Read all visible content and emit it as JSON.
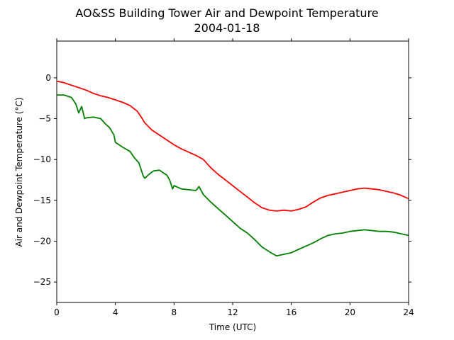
{
  "chart_data": {
    "type": "line",
    "title": "AO&SS Building Tower Air and Dewpoint Temperature",
    "subtitle": "2004-01-18",
    "xlabel": "Time (UTC)",
    "ylabel": "Air and Dewpoint Temperature (°C)",
    "xlim": [
      0,
      24
    ],
    "ylim": [
      -27.5,
      4.5
    ],
    "xticks": [
      0,
      4,
      8,
      12,
      16,
      20,
      24
    ],
    "yticks": [
      0,
      -5,
      -10,
      -15,
      -20,
      -25
    ],
    "grid": false,
    "series": [
      {
        "color": "#ff0000",
        "x": [
          0,
          0.5,
          1,
          1.5,
          2,
          2.5,
          3,
          3.5,
          4,
          4.5,
          5,
          5.5,
          5.8,
          6,
          6.5,
          7,
          7.5,
          8,
          8.5,
          9,
          9.5,
          10,
          10.5,
          11,
          11.5,
          12,
          12.5,
          13,
          13.5,
          14,
          14.5,
          15,
          15.5,
          16,
          16.5,
          17,
          17.5,
          18,
          18.5,
          19,
          19.5,
          20,
          20.5,
          21,
          21.5,
          22,
          22.5,
          23,
          23.5,
          24
        ],
        "y": [
          -0.4,
          -0.6,
          -0.9,
          -1.2,
          -1.5,
          -1.9,
          -2.2,
          -2.4,
          -2.7,
          -3.0,
          -3.4,
          -4.1,
          -4.9,
          -5.5,
          -6.4,
          -7.0,
          -7.6,
          -8.2,
          -8.7,
          -9.1,
          -9.5,
          -10.0,
          -11.0,
          -11.8,
          -12.5,
          -13.2,
          -13.9,
          -14.6,
          -15.3,
          -15.9,
          -16.2,
          -16.3,
          -16.2,
          -16.3,
          -16.1,
          -15.8,
          -15.2,
          -14.7,
          -14.4,
          -14.2,
          -14.0,
          -13.8,
          -13.6,
          -13.5,
          -13.6,
          -13.7,
          -13.9,
          -14.1,
          -14.4,
          -14.8
        ]
      },
      {
        "color": "#008000",
        "x": [
          0,
          0.5,
          1,
          1.3,
          1.5,
          1.7,
          1.9,
          2,
          2.5,
          3,
          3.3,
          3.6,
          3.9,
          4,
          4.5,
          5,
          5.3,
          5.6,
          5.9,
          6,
          6.3,
          6.6,
          7,
          7.5,
          7.7,
          7.9,
          8,
          8.5,
          9,
          9.5,
          9.7,
          10,
          10.5,
          11,
          11.5,
          12,
          12.5,
          13,
          13.5,
          14,
          14.5,
          15,
          15.5,
          16,
          16.5,
          17,
          17.5,
          18,
          18.5,
          19,
          19.5,
          20,
          20.5,
          21,
          21.5,
          22,
          22.5,
          23,
          23.5,
          24
        ],
        "y": [
          -2.1,
          -2.1,
          -2.4,
          -3.2,
          -4.3,
          -3.5,
          -5.0,
          -4.9,
          -4.8,
          -5.0,
          -5.6,
          -6.1,
          -7.0,
          -7.9,
          -8.5,
          -9.0,
          -9.8,
          -10.4,
          -12.0,
          -12.3,
          -11.8,
          -11.4,
          -11.3,
          -11.9,
          -12.5,
          -13.6,
          -13.2,
          -13.6,
          -13.7,
          -13.8,
          -13.3,
          -14.3,
          -15.2,
          -16.0,
          -16.8,
          -17.6,
          -18.4,
          -19.0,
          -19.8,
          -20.7,
          -21.3,
          -21.8,
          -21.6,
          -21.4,
          -21.0,
          -20.6,
          -20.2,
          -19.7,
          -19.3,
          -19.1,
          -19.0,
          -18.8,
          -18.7,
          -18.6,
          -18.7,
          -18.8,
          -18.8,
          -18.9,
          -19.1,
          -19.3
        ]
      }
    ]
  }
}
